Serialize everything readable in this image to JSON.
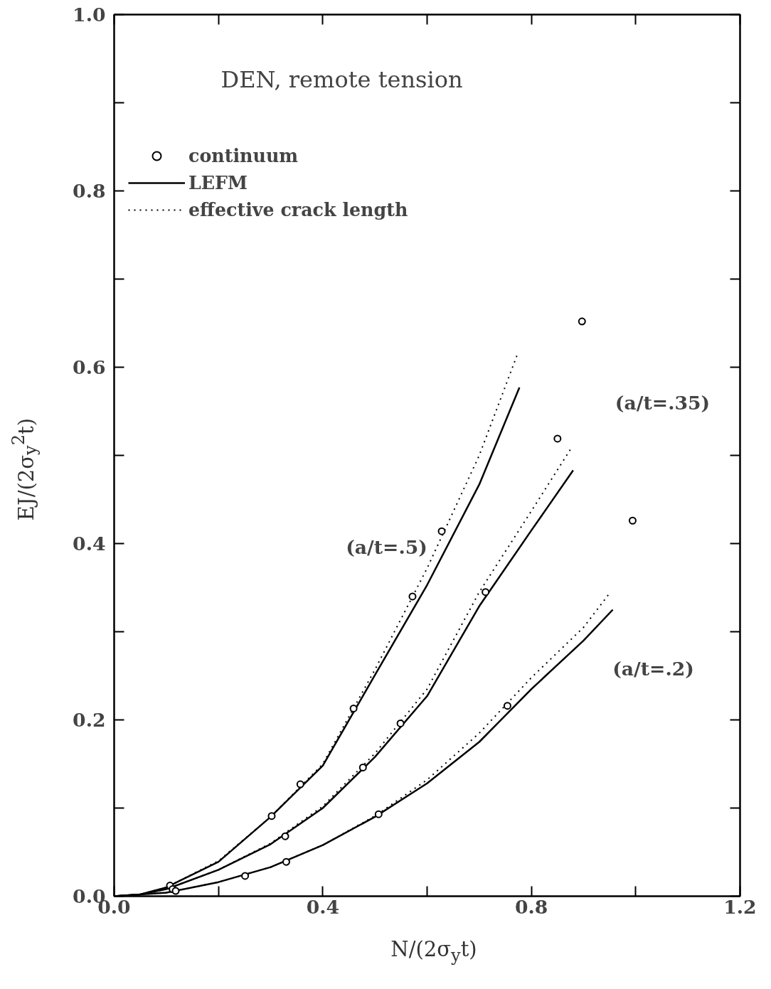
{
  "chart_data": {
    "type": "line",
    "title": "DEN, remote tension",
    "xlabel": "N/(2σ$_{y}$t)",
    "ylabel": "EJ/(2σ$_{y}$$^{2}$t)",
    "xlim": [
      0,
      1.2
    ],
    "ylim": [
      0,
      1.0
    ],
    "xticks": [
      {
        "value": 0,
        "label": "0.0"
      },
      {
        "value": 0.2,
        "label": null
      },
      0.4,
      {
        "value": 0.6,
        "label": null
      },
      0.8,
      {
        "value": 1.0,
        "label": null
      },
      1.2
    ],
    "yticks": [
      {
        "value": 0,
        "label": "0.0"
      },
      {
        "value": 0.1,
        "label": null
      },
      0.2,
      {
        "value": 0.3,
        "label": null
      },
      0.4,
      {
        "value": 0.5,
        "label": null
      },
      0.6,
      {
        "value": 0.7,
        "label": null
      },
      0.8,
      {
        "value": 0.9,
        "label": null
      },
      {
        "value": 1.0,
        "label": "1.0"
      }
    ],
    "grid": false,
    "legend": "top left",
    "series": [
      {
        "type": "scatter",
        "name": "continuum",
        "color": "#000000",
        "marker": "circle",
        "x": [
          0.107,
          0.112,
          0.118,
          0.251,
          0.302,
          0.328,
          0.33,
          0.357,
          0.459,
          0.477,
          0.507,
          0.549,
          0.572,
          0.628,
          0.712,
          0.754,
          0.85,
          0.897,
          0.994
        ],
        "values": [
          0.012,
          0.008,
          0.006,
          0.023,
          0.091,
          0.068,
          0.039,
          0.127,
          0.213,
          0.146,
          0.093,
          0.196,
          0.34,
          0.414,
          0.345,
          0.216,
          0.519,
          0.652,
          0.426
        ]
      },
      {
        "type": "line",
        "name": "LEFM",
        "color": "#000000",
        "line_style": "solid",
        "x": [
          0,
          0.05,
          0.1,
          0.2,
          0.3,
          0.4,
          0.5,
          0.6,
          0.7,
          0.777
        ],
        "values": [
          0,
          0.002,
          0.01,
          0.039,
          0.09,
          0.148,
          0.251,
          0.353,
          0.467,
          0.577
        ]
      },
      {
        "type": "line",
        "color": "#000000",
        "line_style": "solid",
        "x": [
          0,
          0.05,
          0.1,
          0.2,
          0.3,
          0.4,
          0.5,
          0.6,
          0.7,
          0.8,
          0.88
        ],
        "values": [
          0,
          0.002,
          0.008,
          0.03,
          0.059,
          0.1,
          0.158,
          0.227,
          0.329,
          0.415,
          0.483
        ]
      },
      {
        "type": "line",
        "color": "#000000",
        "line_style": "solid",
        "x": [
          0,
          0.1,
          0.2,
          0.3,
          0.4,
          0.5,
          0.6,
          0.7,
          0.8,
          0.9,
          0.956
        ],
        "values": [
          0,
          0.004,
          0.016,
          0.033,
          0.058,
          0.09,
          0.128,
          0.175,
          0.235,
          0.29,
          0.325
        ]
      },
      {
        "type": "line",
        "name": "effective crack length",
        "color": "#000000",
        "line_style": "dotted",
        "x": [
          0,
          0.05,
          0.1,
          0.2,
          0.3,
          0.4,
          0.5,
          0.6,
          0.7,
          0.774
        ],
        "values": [
          0,
          0.002,
          0.01,
          0.04,
          0.09,
          0.15,
          0.257,
          0.372,
          0.5,
          0.616
        ]
      },
      {
        "type": "line",
        "color": "#000000",
        "line_style": "dotted",
        "x": [
          0,
          0.05,
          0.1,
          0.2,
          0.3,
          0.4,
          0.5,
          0.6,
          0.7,
          0.8,
          0.876
        ],
        "values": [
          0,
          0.002,
          0.008,
          0.03,
          0.06,
          0.102,
          0.162,
          0.235,
          0.345,
          0.437,
          0.508
        ]
      },
      {
        "type": "line",
        "color": "#000000",
        "line_style": "dotted",
        "x": [
          0,
          0.1,
          0.2,
          0.3,
          0.4,
          0.5,
          0.6,
          0.7,
          0.8,
          0.9,
          0.949
        ],
        "values": [
          0,
          0.004,
          0.016,
          0.033,
          0.058,
          0.091,
          0.132,
          0.185,
          0.248,
          0.305,
          0.343
        ]
      }
    ],
    "annotations": [
      "(a/t=.5)",
      "(a/t=.35)",
      "(a/t=.2)"
    ]
  }
}
